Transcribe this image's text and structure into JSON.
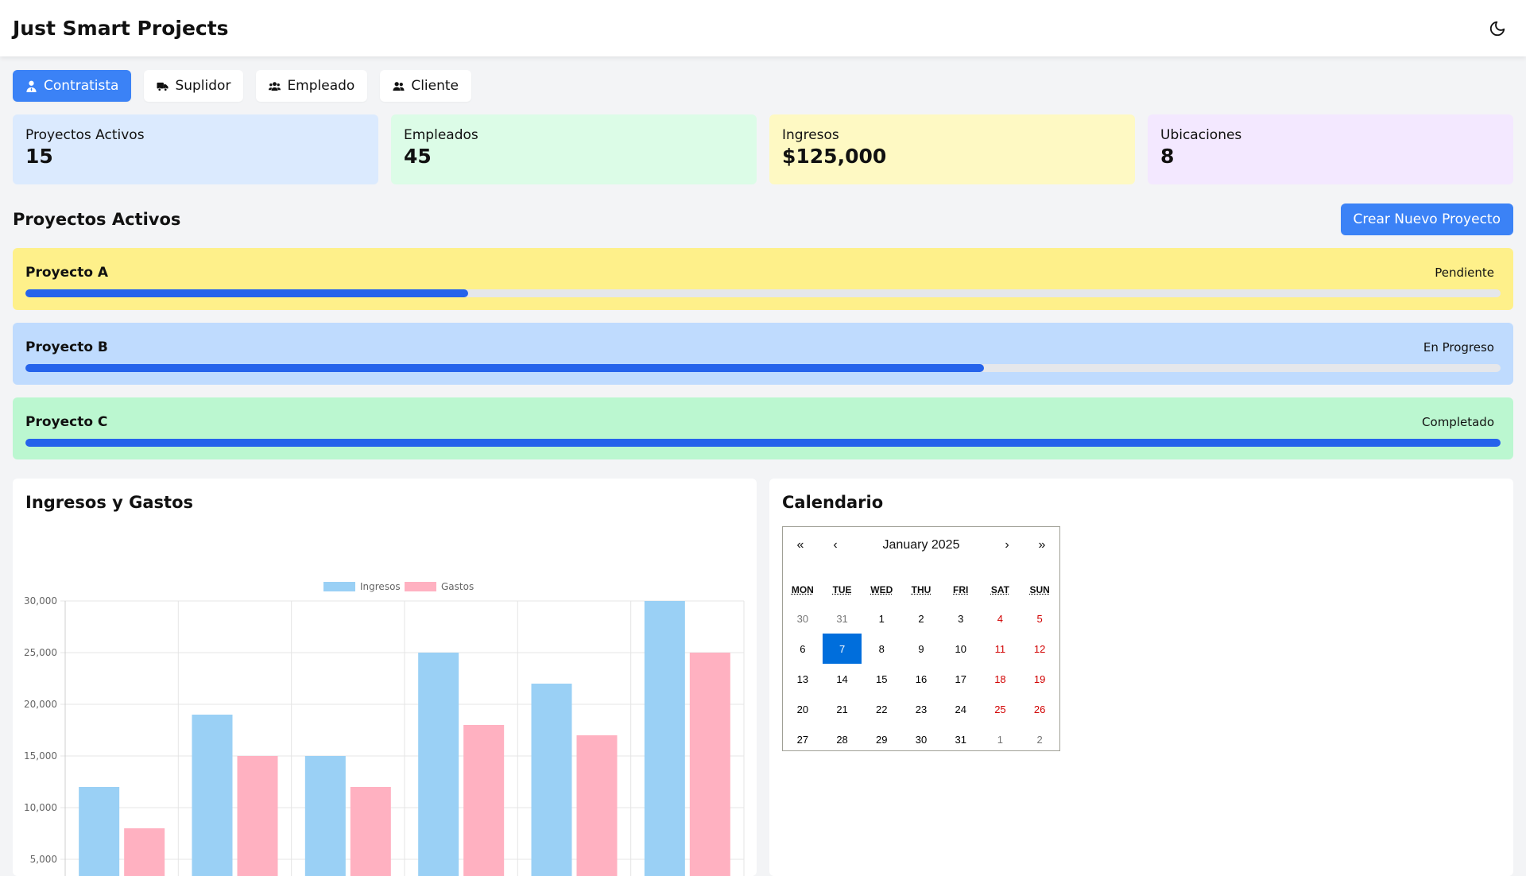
{
  "app": {
    "title": "Just Smart Projects"
  },
  "roles": [
    {
      "label": "Contratista",
      "icon": "user-tie-icon",
      "active": true
    },
    {
      "label": "Suplidor",
      "icon": "truck-icon",
      "active": false
    },
    {
      "label": "Empleado",
      "icon": "users-icon",
      "active": false
    },
    {
      "label": "Cliente",
      "icon": "user-friends-icon",
      "active": false
    }
  ],
  "stats": [
    {
      "label": "Proyectos Activos",
      "value": "15",
      "color": "#dbeafe"
    },
    {
      "label": "Empleados",
      "value": "45",
      "color": "#dcfce7"
    },
    {
      "label": "Ingresos",
      "value": "$125,000",
      "color": "#fef9c3"
    },
    {
      "label": "Ubicaciones",
      "value": "8",
      "color": "#f3e8ff"
    }
  ],
  "projects_section": {
    "title": "Proyectos Activos",
    "new_button": "Crear Nuevo Proyecto"
  },
  "projects": [
    {
      "name": "Proyecto A",
      "status": "Pendiente",
      "progress": 30,
      "color": "#fef08a"
    },
    {
      "name": "Proyecto B",
      "status": "En Progreso",
      "progress": 65,
      "color": "#bfdbfe"
    },
    {
      "name": "Proyecto C",
      "status": "Completado",
      "progress": 100,
      "color": "#bbf7d0"
    }
  ],
  "chart_section": {
    "title": "Ingresos y Gastos"
  },
  "chart_data": {
    "type": "bar",
    "categories": [
      "",
      "",
      "",
      "",
      "",
      ""
    ],
    "series": [
      {
        "name": "Ingresos",
        "values": [
          12000,
          19000,
          15000,
          25000,
          22000,
          30000
        ],
        "color": "#9ad0f5"
      },
      {
        "name": "Gastos",
        "values": [
          8000,
          15000,
          12000,
          18000,
          17000,
          25000
        ],
        "color": "#ffb1c1"
      }
    ],
    "y_ticks": [
      "30,000",
      "25,000",
      "20,000",
      "15,000",
      "10,000",
      "5,000"
    ],
    "ylim": [
      0,
      30000
    ],
    "legend": "top-center",
    "grid": true
  },
  "calendar_section": {
    "title": "Calendario"
  },
  "calendar": {
    "nav": {
      "first": "«",
      "prev": "‹",
      "next": "›",
      "last": "»"
    },
    "month_label": "January 2025",
    "weekdays": [
      "MON",
      "TUE",
      "WED",
      "THU",
      "FRI",
      "SAT",
      "SUN"
    ],
    "days": [
      {
        "d": "30",
        "type": "neighbor"
      },
      {
        "d": "31",
        "type": "neighbor"
      },
      {
        "d": "1"
      },
      {
        "d": "2"
      },
      {
        "d": "3"
      },
      {
        "d": "4",
        "type": "weekend"
      },
      {
        "d": "5",
        "type": "weekend"
      },
      {
        "d": "6"
      },
      {
        "d": "7",
        "type": "today"
      },
      {
        "d": "8"
      },
      {
        "d": "9"
      },
      {
        "d": "10"
      },
      {
        "d": "11",
        "type": "weekend"
      },
      {
        "d": "12",
        "type": "weekend"
      },
      {
        "d": "13"
      },
      {
        "d": "14"
      },
      {
        "d": "15"
      },
      {
        "d": "16"
      },
      {
        "d": "17"
      },
      {
        "d": "18",
        "type": "weekend"
      },
      {
        "d": "19",
        "type": "weekend"
      },
      {
        "d": "20"
      },
      {
        "d": "21"
      },
      {
        "d": "22"
      },
      {
        "d": "23"
      },
      {
        "d": "24"
      },
      {
        "d": "25",
        "type": "weekend"
      },
      {
        "d": "26",
        "type": "weekend"
      },
      {
        "d": "27"
      },
      {
        "d": "28"
      },
      {
        "d": "29"
      },
      {
        "d": "30"
      },
      {
        "d": "31"
      },
      {
        "d": "1",
        "type": "neighbor"
      },
      {
        "d": "2",
        "type": "neighbor"
      }
    ]
  }
}
